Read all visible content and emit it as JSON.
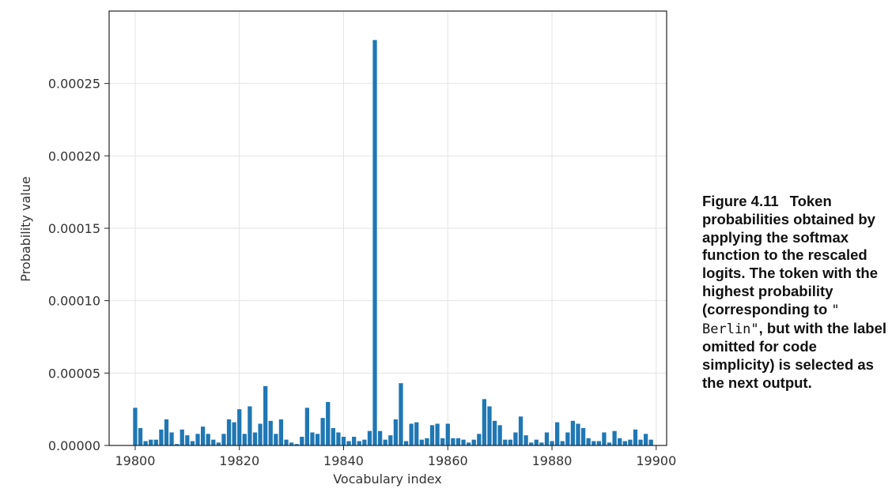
{
  "chart_data": {
    "type": "bar",
    "xlabel": "Vocabulary index",
    "ylabel": "Probability value",
    "xlim": [
      19795,
      19902
    ],
    "ylim": [
      0,
      0.0003
    ],
    "xticks": [
      19800,
      19820,
      19840,
      19860,
      19880,
      19900
    ],
    "yticks": [
      "0.00000",
      "0.00005",
      "0.00010",
      "0.00015",
      "0.00020",
      "0.00025"
    ],
    "ytick_values": [
      0,
      5e-05,
      0.0001,
      0.00015,
      0.0002,
      0.00025
    ],
    "grid": true,
    "bar_color": "#1f77b4",
    "x": [
      19800,
      19801,
      19802,
      19803,
      19804,
      19805,
      19806,
      19807,
      19808,
      19809,
      19810,
      19811,
      19812,
      19813,
      19814,
      19815,
      19816,
      19817,
      19818,
      19819,
      19820,
      19821,
      19822,
      19823,
      19824,
      19825,
      19826,
      19827,
      19828,
      19829,
      19830,
      19831,
      19832,
      19833,
      19834,
      19835,
      19836,
      19837,
      19838,
      19839,
      19840,
      19841,
      19842,
      19843,
      19844,
      19845,
      19846,
      19847,
      19848,
      19849,
      19850,
      19851,
      19852,
      19853,
      19854,
      19855,
      19856,
      19857,
      19858,
      19859,
      19860,
      19861,
      19862,
      19863,
      19864,
      19865,
      19866,
      19867,
      19868,
      19869,
      19870,
      19871,
      19872,
      19873,
      19874,
      19875,
      19876,
      19877,
      19878,
      19879,
      19880,
      19881,
      19882,
      19883,
      19884,
      19885,
      19886,
      19887,
      19888,
      19889,
      19890,
      19891,
      19892,
      19893,
      19894,
      19895,
      19896,
      19897,
      19898,
      19899
    ],
    "values": [
      2.6e-05,
      1.2e-05,
      3e-06,
      4e-06,
      4e-06,
      1.1e-05,
      1.8e-05,
      9e-06,
      1e-06,
      1.1e-05,
      7e-06,
      3e-06,
      8e-06,
      1.3e-05,
      8e-06,
      4e-06,
      2e-06,
      8e-06,
      1.8e-05,
      1.6e-05,
      2.5e-05,
      8e-06,
      2.7e-05,
      9e-06,
      1.5e-05,
      4.1e-05,
      1.7e-05,
      8e-06,
      1.8e-05,
      4e-06,
      2e-06,
      1e-06,
      6e-06,
      2.6e-05,
      9e-06,
      8e-06,
      1.9e-05,
      3e-05,
      1.2e-05,
      9e-06,
      6e-06,
      3e-06,
      6e-06,
      3e-06,
      4e-06,
      1e-05,
      0.00028,
      1e-05,
      4e-06,
      7e-06,
      1.8e-05,
      4.3e-05,
      3e-06,
      1.5e-05,
      1.6e-05,
      4e-06,
      5e-06,
      1.4e-05,
      1.5e-05,
      5e-06,
      1.5e-05,
      5e-06,
      5e-06,
      4e-06,
      2e-06,
      4e-06,
      8e-06,
      3.2e-05,
      2.7e-05,
      1.7e-05,
      1.4e-05,
      4e-06,
      4e-06,
      9e-06,
      2e-05,
      7e-06,
      2e-06,
      4e-06,
      2e-06,
      9e-06,
      3e-06,
      1.6e-05,
      3e-06,
      9e-06,
      1.7e-05,
      1.5e-05,
      1.2e-05,
      5e-06,
      3e-06,
      3e-06,
      9e-06,
      2e-06,
      1e-05,
      5e-06,
      3e-06,
      4e-06,
      1.1e-05,
      4e-06,
      8e-06,
      4e-06
    ]
  },
  "caption": {
    "figure_label": "Figure 4.11",
    "text_before_code": "Token probabilities obtained by applying the softmax function to the rescaled logits. The token with the highest probability (corresponding to ",
    "code": "\" Berlin\"",
    "text_after_code": ", but with the label omitted for code simplicity) is selected as the next output."
  }
}
